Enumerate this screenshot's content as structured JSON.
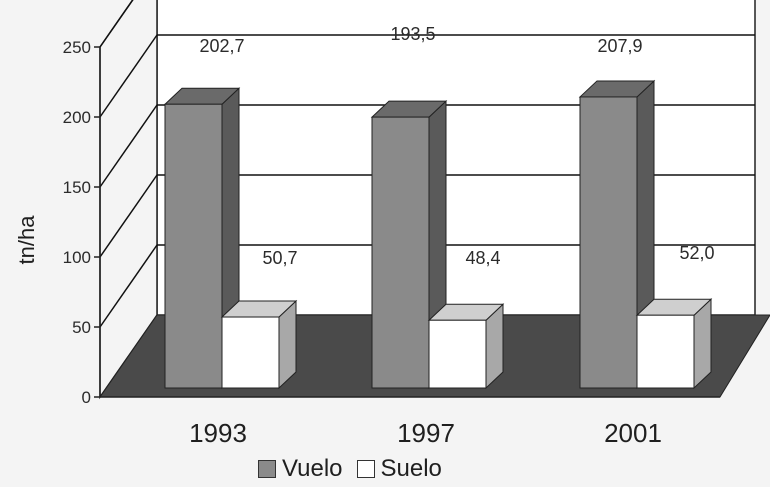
{
  "chart_data": {
    "type": "bar",
    "style": "3d-clustered-column",
    "ylabel": "tn/ha",
    "xlabel": "",
    "ylim": [
      0,
      250
    ],
    "yticks": [
      "0",
      "50",
      "100",
      "150",
      "200",
      "250"
    ],
    "categories": [
      "1993",
      "1997",
      "2001"
    ],
    "series": [
      {
        "name": "Vuelo",
        "values": [
          202.7,
          193.5,
          207.9
        ],
        "labels": [
          "202,7",
          "193,5",
          "207,9"
        ],
        "color": "#8a8a8a"
      },
      {
        "name": "Suelo",
        "values": [
          50.7,
          48.4,
          52.0
        ],
        "labels": [
          "50,7",
          "48,4",
          "52,0"
        ],
        "color": "#ffffff"
      }
    ],
    "grid": true,
    "legend_position": "bottom"
  },
  "colors": {
    "background": "#f4f4f4",
    "back_wall": "#ffffff",
    "floor": "#4a4a4a",
    "gridline": "#111111"
  }
}
